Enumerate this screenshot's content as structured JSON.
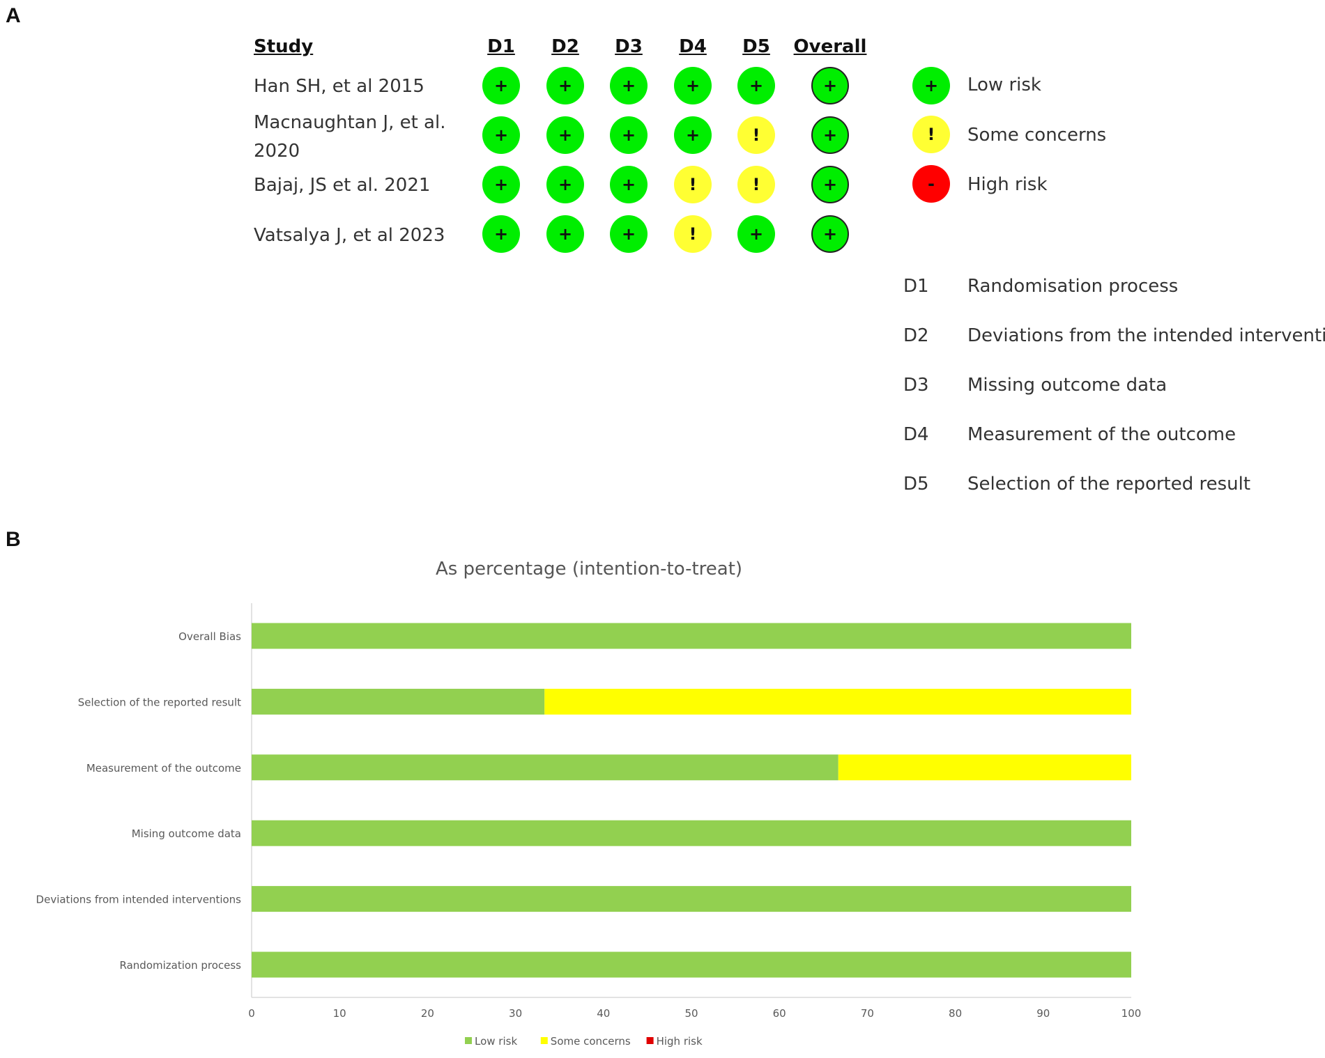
{
  "panels": {
    "a": "A",
    "b": "B"
  },
  "table": {
    "headers": {
      "study": "Study",
      "d1": "D1",
      "d2": "D2",
      "d3": "D3",
      "d4": "D4",
      "d5": "D5",
      "overall": "Overall"
    },
    "rows": [
      {
        "study": "Han SH, et al 2015",
        "judgements": [
          "low",
          "low",
          "low",
          "low",
          "low",
          "low"
        ]
      },
      {
        "study": "Macnaughtan J, et al. 2020",
        "judgements": [
          "low",
          "low",
          "low",
          "low",
          "some",
          "low"
        ]
      },
      {
        "study": "Bajaj, JS et al. 2021",
        "judgements": [
          "low",
          "low",
          "low",
          "some",
          "some",
          "low"
        ]
      },
      {
        "study": "Vatsalya J, et al 2023",
        "judgements": [
          "low",
          "low",
          "low",
          "some",
          "low",
          "low"
        ]
      }
    ]
  },
  "judgement_styles": {
    "low": {
      "symbol": "+",
      "color": "#00ee00"
    },
    "some": {
      "symbol": "!",
      "color": "#ffff33"
    },
    "high": {
      "symbol": "-",
      "color": "#ff0000"
    }
  },
  "legend": [
    {
      "key": "low",
      "label": "Low risk"
    },
    {
      "key": "some",
      "label": "Some concerns"
    },
    {
      "key": "high",
      "label": "High risk"
    }
  ],
  "domains": [
    {
      "code": "D1",
      "label": "Randomisation process"
    },
    {
      "code": "D2",
      "label": "Deviations from the intended interventions"
    },
    {
      "code": "D3",
      "label": "Missing outcome data"
    },
    {
      "code": "D4",
      "label": "Measurement of the outcome"
    },
    {
      "code": "D5",
      "label": "Selection of the reported result"
    }
  ],
  "chart_data": {
    "type": "bar",
    "orientation": "horizontal",
    "stacked": true,
    "title": "As percentage (intention-to-treat)",
    "categories": [
      "Overall Bias",
      "Selection of the reported result",
      "Measurement of the outcome",
      "Mising outcome data",
      "Deviations from intended interventions",
      "Randomization process"
    ],
    "series": [
      {
        "name": "Low risk",
        "color": "#92d050",
        "values": [
          100,
          33.3,
          66.7,
          100,
          100,
          100
        ]
      },
      {
        "name": "Some concerns",
        "color": "#ffff00",
        "values": [
          0,
          66.7,
          33.3,
          0,
          0,
          0
        ]
      },
      {
        "name": "High risk",
        "color": "#e00000",
        "values": [
          0,
          0,
          0,
          0,
          0,
          0
        ]
      }
    ],
    "xlim": [
      0,
      100
    ],
    "xticks": [
      0,
      10,
      20,
      30,
      40,
      50,
      60,
      70,
      80,
      90,
      100
    ],
    "grid": false,
    "legend_position": "bottom"
  }
}
